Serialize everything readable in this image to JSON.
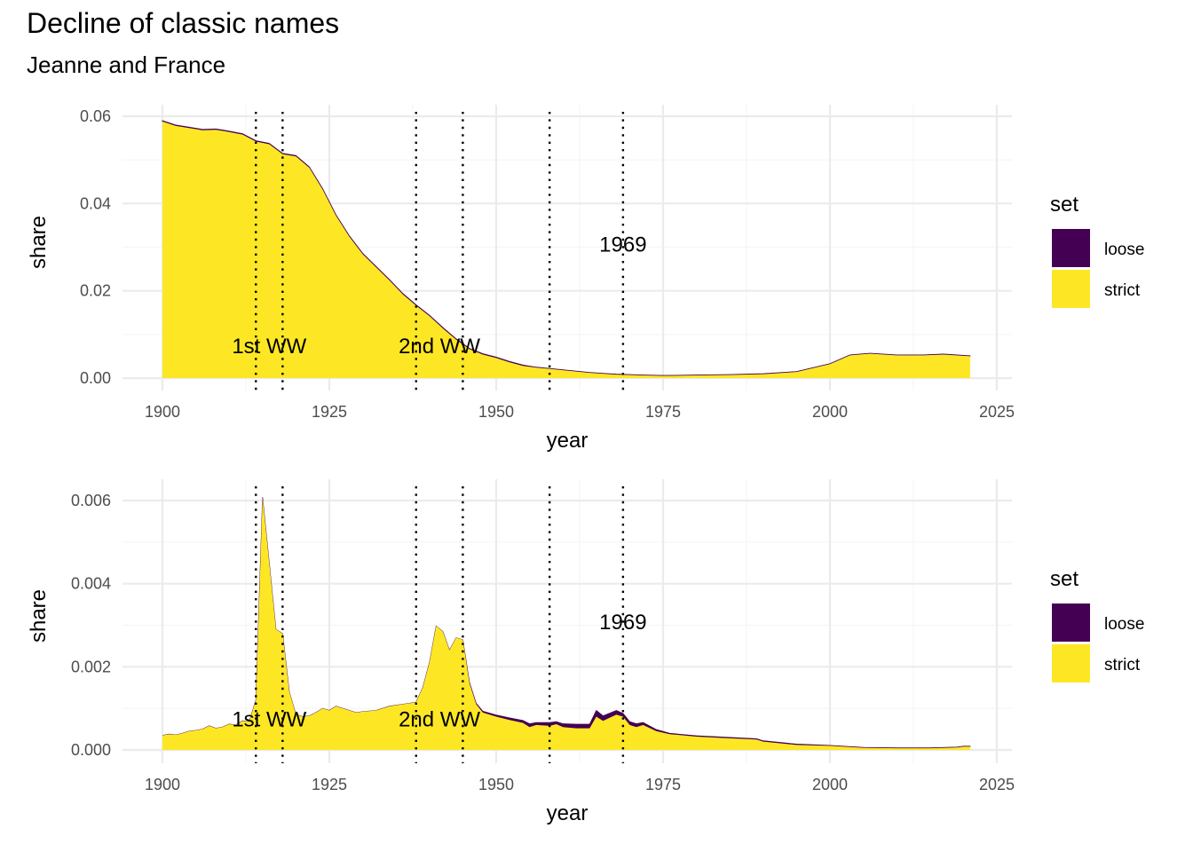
{
  "title": "Decline of classic names",
  "subtitle": "Jeanne and France",
  "colors": {
    "loose": "#440154",
    "strict": "#FDE725",
    "grid_major": "#EBEBEB",
    "grid_minor": "#F5F5F5"
  },
  "chart_data": [
    {
      "type": "area",
      "stacked": true,
      "xlabel": "year",
      "ylabel": "share",
      "xlim": [
        1900,
        2021
      ],
      "ylim": [
        0,
        0.06
      ],
      "x_ticks": [
        1900,
        1925,
        1950,
        1975,
        2000,
        2025
      ],
      "x_tick_labels": [
        "1900",
        "1925",
        "1950",
        "1975",
        "2000",
        "2025"
      ],
      "y_ticks": [
        0,
        0.02,
        0.04,
        0.06
      ],
      "y_tick_labels": [
        "0.00",
        "0.02",
        "0.04",
        "0.06"
      ],
      "vlines": [
        1914,
        1918,
        1938,
        1945,
        1958,
        1969
      ],
      "annotations": [
        {
          "text": "1st WW",
          "x": 1916,
          "y": 0.0057
        },
        {
          "text": "2nd WW",
          "x": 1941.5,
          "y": 0.0057
        },
        {
          "text": "1969",
          "x": 1969,
          "y": 0.029
        }
      ],
      "legend": {
        "title": "set",
        "position": "right",
        "entries": [
          "loose",
          "strict"
        ]
      },
      "x": [
        1900,
        1902,
        1904,
        1906,
        1908,
        1910,
        1912,
        1914,
        1916,
        1918,
        1920,
        1922,
        1924,
        1926,
        1928,
        1930,
        1932,
        1934,
        1936,
        1938,
        1940,
        1942,
        1944,
        1946,
        1948,
        1950,
        1952,
        1954,
        1956,
        1958,
        1960,
        1962,
        1964,
        1966,
        1968,
        1970,
        1972,
        1975,
        1980,
        1985,
        1990,
        1995,
        2000,
        2003,
        2006,
        2010,
        2014,
        2017,
        2021
      ],
      "series": [
        {
          "name": "strict",
          "values": [
            0.0588,
            0.0578,
            0.0573,
            0.0568,
            0.0569,
            0.0564,
            0.0558,
            0.0542,
            0.0536,
            0.0513,
            0.0508,
            0.0482,
            0.0432,
            0.0372,
            0.0324,
            0.0284,
            0.0254,
            0.0224,
            0.0192,
            0.0166,
            0.0142,
            0.0114,
            0.0088,
            0.0066,
            0.0054,
            0.0046,
            0.0036,
            0.0028,
            0.0024,
            0.0021,
            0.0018,
            0.0015,
            0.0012,
            0.001,
            0.0008,
            0.0007,
            0.0006,
            0.0005,
            0.0006,
            0.0007,
            0.0009,
            0.0014,
            0.0032,
            0.0052,
            0.0056,
            0.0052,
            0.0052,
            0.0054,
            0.005
          ]
        },
        {
          "name": "loose",
          "values": [
            0.0002,
            0.0002,
            0.0002,
            0.0002,
            0.0002,
            0.0002,
            0.0002,
            0.0002,
            0.0002,
            0.0002,
            0.0002,
            0.0002,
            0.0002,
            0.0002,
            0.0002,
            0.0002,
            0.0002,
            0.0002,
            0.0002,
            0.0002,
            0.0002,
            0.0002,
            0.0002,
            0.0002,
            0.0002,
            0.0002,
            0.0002,
            0.0002,
            0.0001,
            0.0001,
            0.0001,
            0.0001,
            0.0001,
            0.0001,
            0.0001,
            0.0001,
            0.0001,
            0.0001,
            0.0001,
            0.0001,
            0.0001,
            0.0001,
            0.0001,
            0.0001,
            0.0001,
            0.0001,
            0.0001,
            0.0001,
            0.0001
          ]
        }
      ]
    },
    {
      "type": "area",
      "stacked": true,
      "xlabel": "year",
      "ylabel": "share",
      "xlim": [
        1900,
        2021
      ],
      "ylim": [
        0,
        0.006
      ],
      "x_ticks": [
        1900,
        1925,
        1950,
        1975,
        2000,
        2025
      ],
      "x_tick_labels": [
        "1900",
        "1925",
        "1950",
        "1975",
        "2000",
        "2025"
      ],
      "y_ticks": [
        0,
        0.002,
        0.004,
        0.006
      ],
      "y_tick_labels": [
        "0.000",
        "0.002",
        "0.004",
        "0.006"
      ],
      "vlines": [
        1914,
        1918,
        1938,
        1945,
        1958,
        1969
      ],
      "annotations": [
        {
          "text": "1st WW",
          "x": 1916,
          "y": 0.00057
        },
        {
          "text": "2nd WW",
          "x": 1941.5,
          "y": 0.00057
        },
        {
          "text": "1969",
          "x": 1969,
          "y": 0.0029
        }
      ],
      "legend": {
        "title": "set",
        "position": "right",
        "entries": [
          "loose",
          "strict"
        ]
      },
      "x": [
        1900,
        1901,
        1902,
        1903,
        1904,
        1905,
        1906,
        1907,
        1908,
        1909,
        1910,
        1911,
        1912,
        1913,
        1914,
        1915,
        1916,
        1917,
        1918,
        1919,
        1920,
        1921,
        1922,
        1923,
        1924,
        1925,
        1926,
        1927,
        1928,
        1929,
        1930,
        1932,
        1934,
        1936,
        1937,
        1938,
        1939,
        1940,
        1941,
        1942,
        1943,
        1944,
        1945,
        1946,
        1947,
        1948,
        1950,
        1952,
        1954,
        1955,
        1956,
        1958,
        1959,
        1960,
        1962,
        1964,
        1965,
        1966,
        1968,
        1969,
        1970,
        1971,
        1972,
        1974,
        1976,
        1980,
        1985,
        1989,
        1990,
        1995,
        2000,
        2005,
        2010,
        2015,
        2019,
        2020,
        2021
      ],
      "series": [
        {
          "name": "strict",
          "values": [
            0.00035,
            0.00038,
            0.00036,
            0.0004,
            0.00045,
            0.00047,
            0.0005,
            0.00058,
            0.00052,
            0.00055,
            0.00062,
            0.0006,
            0.0007,
            0.00068,
            0.0012,
            0.00608,
            0.0045,
            0.0029,
            0.0028,
            0.0014,
            0.00085,
            0.0008,
            0.00082,
            0.0009,
            0.001,
            0.00095,
            0.00105,
            0.001,
            0.00095,
            0.0009,
            0.00092,
            0.00095,
            0.00105,
            0.0011,
            0.00112,
            0.00115,
            0.0015,
            0.0021,
            0.00298,
            0.00285,
            0.0024,
            0.0027,
            0.00265,
            0.0016,
            0.0011,
            0.0009,
            0.0008,
            0.00072,
            0.00065,
            0.00055,
            0.0006,
            0.00058,
            0.00062,
            0.00055,
            0.00052,
            0.00052,
            0.0008,
            0.0007,
            0.00085,
            0.0008,
            0.0006,
            0.00055,
            0.0006,
            0.00045,
            0.00038,
            0.00032,
            0.00028,
            0.00025,
            0.0002,
            0.00012,
            0.0001,
            5e-05,
            4e-05,
            4e-05,
            6e-05,
            8e-05,
            8e-05
          ]
        },
        {
          "name": "loose",
          "values": [
            0,
            0,
            0,
            0,
            0,
            0,
            0,
            0,
            0,
            0,
            0,
            0,
            0,
            0,
            0,
            0,
            0,
            0,
            0,
            0,
            0,
            0,
            0,
            0,
            0,
            0,
            0,
            0,
            0,
            0,
            0,
            0,
            0,
            0,
            0,
            0,
            0,
            0,
            0,
            0,
            0,
            0,
            0,
            2e-05,
            2e-05,
            3e-05,
            4e-05,
            5e-05,
            6e-05,
            8e-05,
            6e-05,
            8e-05,
            6e-05,
            8e-05,
            0.0001,
            0.0001,
            0.00015,
            0.00012,
            0.0001,
            8e-05,
            8e-05,
            8e-05,
            6e-05,
            4e-05,
            2e-05,
            2e-05,
            2e-05,
            2e-05,
            2e-05,
            2e-05,
            1e-05,
            1e-05,
            1e-05,
            1e-05,
            1e-05,
            1e-05,
            1e-05
          ]
        }
      ]
    }
  ]
}
